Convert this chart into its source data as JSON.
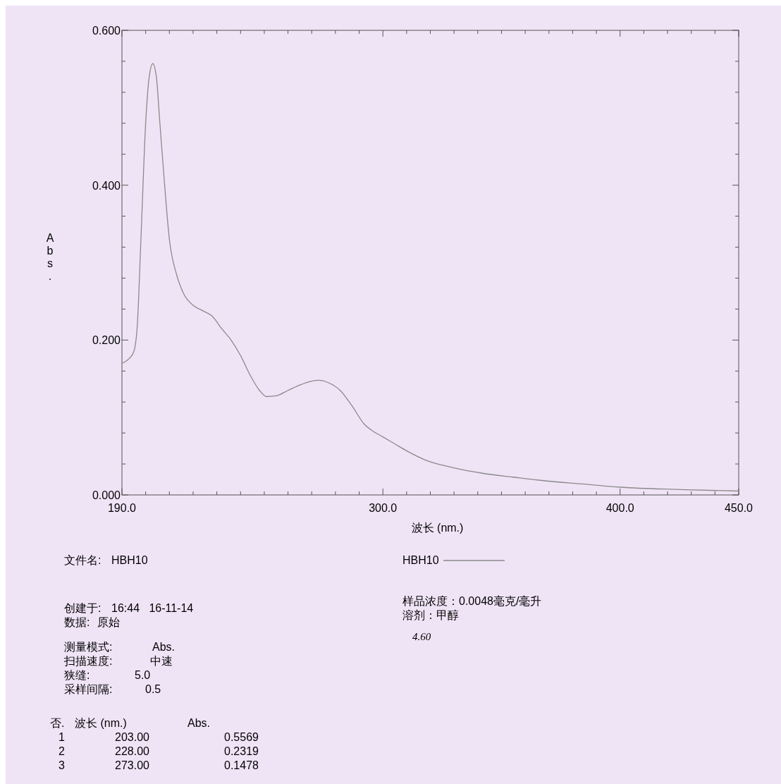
{
  "chart_data": {
    "type": "line",
    "xlabel": "波长 (nm.)",
    "ylabel": "Abs.",
    "xlim": [
      190,
      450
    ],
    "ylim": [
      0,
      0.6
    ],
    "xticks": [
      {
        "value": 190,
        "label": "190.0"
      },
      {
        "value": 200,
        "label": null
      },
      {
        "value": 210,
        "label": null
      },
      {
        "value": 220,
        "label": null
      },
      {
        "value": 230,
        "label": null
      },
      {
        "value": 240,
        "label": null
      },
      {
        "value": 250,
        "label": null
      },
      {
        "value": 260,
        "label": null
      },
      {
        "value": 270,
        "label": null
      },
      {
        "value": 280,
        "label": null
      },
      {
        "value": 290,
        "label": null
      },
      {
        "value": 300,
        "label": "300.0"
      },
      {
        "value": 310,
        "label": null
      },
      {
        "value": 320,
        "label": null
      },
      {
        "value": 330,
        "label": null
      },
      {
        "value": 340,
        "label": null
      },
      {
        "value": 350,
        "label": null
      },
      {
        "value": 360,
        "label": null
      },
      {
        "value": 370,
        "label": null
      },
      {
        "value": 380,
        "label": null
      },
      {
        "value": 390,
        "label": null
      },
      {
        "value": 400,
        "label": "400.0"
      },
      {
        "value": 410,
        "label": null
      },
      {
        "value": 420,
        "label": null
      },
      {
        "value": 430,
        "label": null
      },
      {
        "value": 440,
        "label": null
      },
      {
        "value": 450,
        "label": "450.0"
      }
    ],
    "yticks": [
      {
        "value": 0,
        "label": "0.000"
      },
      {
        "value": 0.04,
        "label": null
      },
      {
        "value": 0.08,
        "label": null
      },
      {
        "value": 0.12,
        "label": null
      },
      {
        "value": 0.16,
        "label": null
      },
      {
        "value": 0.2,
        "label": "0.200"
      },
      {
        "value": 0.24,
        "label": null
      },
      {
        "value": 0.28,
        "label": null
      },
      {
        "value": 0.32,
        "label": null
      },
      {
        "value": 0.36,
        "label": null
      },
      {
        "value": 0.4,
        "label": "0.400"
      },
      {
        "value": 0.44,
        "label": null
      },
      {
        "value": 0.48,
        "label": null
      },
      {
        "value": 0.52,
        "label": null
      },
      {
        "value": 0.56,
        "label": null
      },
      {
        "value": 0.6,
        "label": "0.600"
      }
    ],
    "grid": false,
    "legend": "bottom",
    "marker": "none",
    "line_style": "solid",
    "series": [
      {
        "name": "HBH10",
        "color": "#8a8a8a",
        "x": [
          190,
          193,
          195,
          196.5,
          198,
          200,
          201.5,
          203,
          204.5,
          206,
          208,
          210,
          213,
          216,
          220,
          224,
          228,
          232,
          236,
          240,
          244,
          248,
          251,
          255,
          260,
          265,
          270,
          273,
          277,
          282,
          287,
          292,
          296,
          300,
          305,
          310,
          318,
          330,
          342,
          355,
          369,
          385,
          400,
          425,
          450
        ],
        "values": [
          0.17,
          0.176,
          0.185,
          0.22,
          0.33,
          0.48,
          0.54,
          0.557,
          0.54,
          0.48,
          0.4,
          0.33,
          0.285,
          0.26,
          0.245,
          0.238,
          0.231,
          0.215,
          0.2,
          0.18,
          0.155,
          0.135,
          0.127,
          0.128,
          0.135,
          0.142,
          0.147,
          0.148,
          0.145,
          0.135,
          0.115,
          0.092,
          0.082,
          0.075,
          0.066,
          0.057,
          0.045,
          0.035,
          0.028,
          0.023,
          0.018,
          0.014,
          0.01,
          0.007,
          0.005
        ]
      }
    ],
    "annotations": [
      "文件名:",
      "HBH10",
      "创建于:",
      "16:44   16-11-14",
      "数据:",
      "原始",
      "测量模式:",
      "Abs.",
      "扫描速度:",
      "中速",
      "狭缝:",
      "5.0",
      "采样间隔:",
      "0.5",
      "否.",
      "波长 (nm.)",
      "Abs.",
      "1",
      "203.00",
      "0.5569",
      "2",
      "228.00",
      "0.2319",
      "3",
      "273.00",
      "0.1478",
      "样品浓度：0.0048毫克/毫升",
      "溶剂：甲醇",
      "4.60"
    ]
  }
}
